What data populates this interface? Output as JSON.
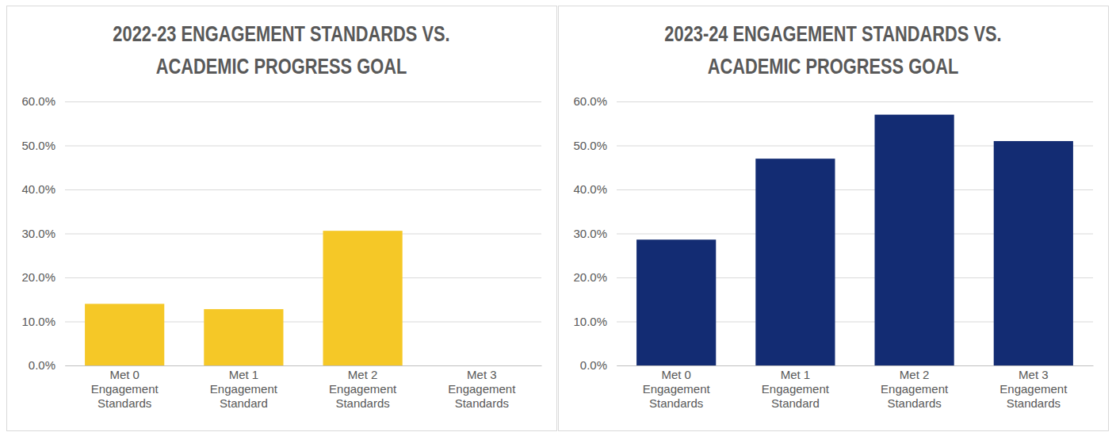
{
  "chart_data": [
    {
      "type": "bar",
      "title": "2022-23 ENGAGEMENT STANDARDS VS. ACADEMIC PROGRESS GOAL",
      "categories": [
        "Met 0 Engagement Standards",
        "Met 1 Engagement Standard",
        "Met 2 Engagement Standards",
        "Met 3 Engagement Standards"
      ],
      "values": [
        14.0,
        12.8,
        30.6,
        null
      ],
      "color": "#f5c827",
      "ylim": [
        0,
        60
      ],
      "yticks": [
        {
          "value": 0,
          "label": "0.0%"
        },
        {
          "value": 10,
          "label": "10.0%"
        },
        {
          "value": 20,
          "label": "20.0%"
        },
        {
          "value": 30,
          "label": "30.0%"
        },
        {
          "value": 40,
          "label": "40.0%"
        },
        {
          "value": 50,
          "label": "50.0%"
        },
        {
          "value": 60,
          "label": "60.0%"
        }
      ],
      "grid": true
    },
    {
      "type": "bar",
      "title": "2023-24 ENGAGEMENT STANDARDS VS. ACADEMIC PROGRESS GOAL",
      "categories": [
        "Met 0 Engagement Standards",
        "Met 1 Engagement Standard",
        "Met 2 Engagement Standards",
        "Met 3 Engagement Standards"
      ],
      "values": [
        28.6,
        47.0,
        57.0,
        51.0
      ],
      "color": "#132c73",
      "ylim": [
        0,
        60
      ],
      "yticks": [
        {
          "value": 0,
          "label": "0.0%"
        },
        {
          "value": 10,
          "label": "10.0%"
        },
        {
          "value": 20,
          "label": "20.0%"
        },
        {
          "value": 30,
          "label": "30.0%"
        },
        {
          "value": 40,
          "label": "40.0%"
        },
        {
          "value": 50,
          "label": "50.0%"
        },
        {
          "value": 60,
          "label": "60.0%"
        }
      ],
      "grid": true
    }
  ]
}
